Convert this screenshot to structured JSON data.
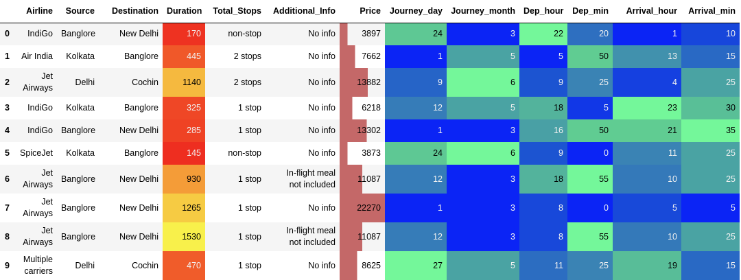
{
  "table": {
    "columns": [
      {
        "key": "index",
        "label": "",
        "type": "index"
      },
      {
        "key": "airline",
        "label": "Airline",
        "type": "text"
      },
      {
        "key": "source",
        "label": "Source",
        "type": "text"
      },
      {
        "key": "destination",
        "label": "Destination",
        "type": "text"
      },
      {
        "key": "duration",
        "label": "Duration",
        "type": "heat-warm"
      },
      {
        "key": "total_stops",
        "label": "Total_Stops",
        "type": "text"
      },
      {
        "key": "additional_info",
        "label": "Additional_Info",
        "type": "text-wrap"
      },
      {
        "key": "price",
        "label": "Price",
        "type": "bar"
      },
      {
        "key": "journey_day",
        "label": "Journey_day",
        "type": "heat-cool"
      },
      {
        "key": "journey_month",
        "label": "Journey_month",
        "type": "heat-cool"
      },
      {
        "key": "dep_hour",
        "label": "Dep_hour",
        "type": "heat-cool"
      },
      {
        "key": "dep_min",
        "label": "Dep_min",
        "type": "heat-cool"
      },
      {
        "key": "arrival_hour",
        "label": "Arrival_hour",
        "type": "heat-cool"
      },
      {
        "key": "arrival_min",
        "label": "Arrival_min",
        "type": "heat-cool"
      }
    ],
    "rows": [
      {
        "index": "0",
        "airline": "IndiGo",
        "source": "Banglore",
        "destination": "New Delhi",
        "duration": 170,
        "total_stops": "non-stop",
        "additional_info": "No info",
        "price": 3897,
        "journey_day": 24,
        "journey_month": 3,
        "dep_hour": 22,
        "dep_min": 20,
        "arrival_hour": 1,
        "arrival_min": 10
      },
      {
        "index": "1",
        "airline": "Air India",
        "source": "Kolkata",
        "destination": "Banglore",
        "duration": 445,
        "total_stops": "2 stops",
        "additional_info": "No info",
        "price": 7662,
        "journey_day": 1,
        "journey_month": 5,
        "dep_hour": 5,
        "dep_min": 50,
        "arrival_hour": 13,
        "arrival_min": 15
      },
      {
        "index": "2",
        "airline": "Jet Airways",
        "source": "Delhi",
        "destination": "Cochin",
        "duration": 1140,
        "total_stops": "2 stops",
        "additional_info": "No info",
        "price": 13882,
        "journey_day": 9,
        "journey_month": 6,
        "dep_hour": 9,
        "dep_min": 25,
        "arrival_hour": 4,
        "arrival_min": 25
      },
      {
        "index": "3",
        "airline": "IndiGo",
        "source": "Kolkata",
        "destination": "Banglore",
        "duration": 325,
        "total_stops": "1 stop",
        "additional_info": "No info",
        "price": 6218,
        "journey_day": 12,
        "journey_month": 5,
        "dep_hour": 18,
        "dep_min": 5,
        "arrival_hour": 23,
        "arrival_min": 30
      },
      {
        "index": "4",
        "airline": "IndiGo",
        "source": "Banglore",
        "destination": "New Delhi",
        "duration": 285,
        "total_stops": "1 stop",
        "additional_info": "No info",
        "price": 13302,
        "journey_day": 1,
        "journey_month": 3,
        "dep_hour": 16,
        "dep_min": 50,
        "arrival_hour": 21,
        "arrival_min": 35
      },
      {
        "index": "5",
        "airline": "SpiceJet",
        "source": "Kolkata",
        "destination": "Banglore",
        "duration": 145,
        "total_stops": "non-stop",
        "additional_info": "No info",
        "price": 3873,
        "journey_day": 24,
        "journey_month": 6,
        "dep_hour": 9,
        "dep_min": 0,
        "arrival_hour": 11,
        "arrival_min": 25
      },
      {
        "index": "6",
        "airline": "Jet Airways",
        "source": "Banglore",
        "destination": "New Delhi",
        "duration": 930,
        "total_stops": "1 stop",
        "additional_info": "In-flight meal\nnot included",
        "price": 11087,
        "journey_day": 12,
        "journey_month": 3,
        "dep_hour": 18,
        "dep_min": 55,
        "arrival_hour": 10,
        "arrival_min": 25
      },
      {
        "index": "7",
        "airline": "Jet Airways",
        "source": "Banglore",
        "destination": "New Delhi",
        "duration": 1265,
        "total_stops": "1 stop",
        "additional_info": "No info",
        "price": 22270,
        "journey_day": 1,
        "journey_month": 3,
        "dep_hour": 8,
        "dep_min": 0,
        "arrival_hour": 5,
        "arrival_min": 5
      },
      {
        "index": "8",
        "airline": "Jet Airways",
        "source": "Banglore",
        "destination": "New Delhi",
        "duration": 1530,
        "total_stops": "1 stop",
        "additional_info": "In-flight meal\nnot included",
        "price": 11087,
        "journey_day": 12,
        "journey_month": 3,
        "dep_hour": 8,
        "dep_min": 55,
        "arrival_hour": 10,
        "arrival_min": 25
      },
      {
        "index": "9",
        "airline": "Multiple carriers",
        "source": "Delhi",
        "destination": "Cochin",
        "duration": 470,
        "total_stops": "1 stop",
        "additional_info": "No info",
        "price": 8625,
        "journey_day": 27,
        "journey_month": 5,
        "dep_hour": 11,
        "dep_min": 25,
        "arrival_hour": 19,
        "arrival_min": 15
      }
    ]
  },
  "styles": {
    "bar_color": "#c46868",
    "stripe_color": "#f5f5f5",
    "text_light": "#f1f1f1",
    "text_dark": "#000000",
    "luminance_threshold": 145,
    "cmap_cool": [
      [
        0.0,
        [
          11,
          36,
          245
        ]
      ],
      [
        0.24,
        [
          28,
          85,
          208
        ]
      ],
      [
        0.45,
        [
          58,
          130,
          180
        ]
      ],
      [
        0.667,
        [
          74,
          163,
          163
        ]
      ],
      [
        0.91,
        [
          96,
          204,
          146
        ]
      ],
      [
        1.0,
        [
          116,
          247,
          154
        ]
      ]
    ],
    "cmap_warm": [
      [
        0.0,
        [
          238,
          46,
          32
        ]
      ],
      [
        1.0,
        [
          248,
          240,
          75
        ]
      ]
    ]
  }
}
